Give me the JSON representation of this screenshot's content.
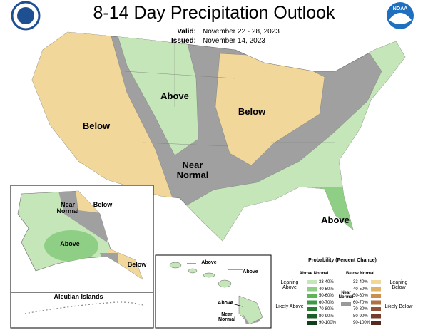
{
  "header": {
    "title": "8-14 Day Precipitation Outlook",
    "valid_label": "Valid:",
    "valid_dates": "November 22 - 28, 2023",
    "issued_label": "Issued:",
    "issued_date": "November 14, 2023",
    "noaa_logo": "NOAA"
  },
  "conus": {
    "labels": [
      "Below",
      "Above",
      "Below",
      "Near Normal",
      "Above"
    ]
  },
  "alaska": {
    "labels": [
      "Near Normal",
      "Below",
      "Above",
      "Below"
    ],
    "aleutian": "Aleutian Islands"
  },
  "hawaii": {
    "labels": [
      "Above",
      "Above",
      "Above",
      "Near Normal"
    ]
  },
  "legend": {
    "title": "Probability (Percent Chance)",
    "above_heading": "Above Normal",
    "below_heading": "Below Normal",
    "above_ranges": [
      "33-40%",
      "40-50%",
      "50-60%",
      "60-70%",
      "70-80%",
      "80-90%",
      "90-100%"
    ],
    "below_ranges": [
      "33-40%",
      "40-50%",
      "50-60%",
      "60-70%",
      "70-80%",
      "80-90%",
      "90-100%"
    ],
    "above_colors": [
      "#c4e6b8",
      "#8fce85",
      "#5db55a",
      "#3d9a44",
      "#2a7c35",
      "#1c5e27",
      "#10401a"
    ],
    "below_colors": [
      "#f2d79a",
      "#dfb26a",
      "#c98f4e",
      "#b07041",
      "#925436",
      "#743c2b",
      "#552a20"
    ],
    "leaning_above": "Leaning Above",
    "likely_above": "Likely Above",
    "near_normal": "Near Normal",
    "near_color": "#999999",
    "leaning_below": "Leaning Below",
    "likely_below": "Likely Below"
  }
}
